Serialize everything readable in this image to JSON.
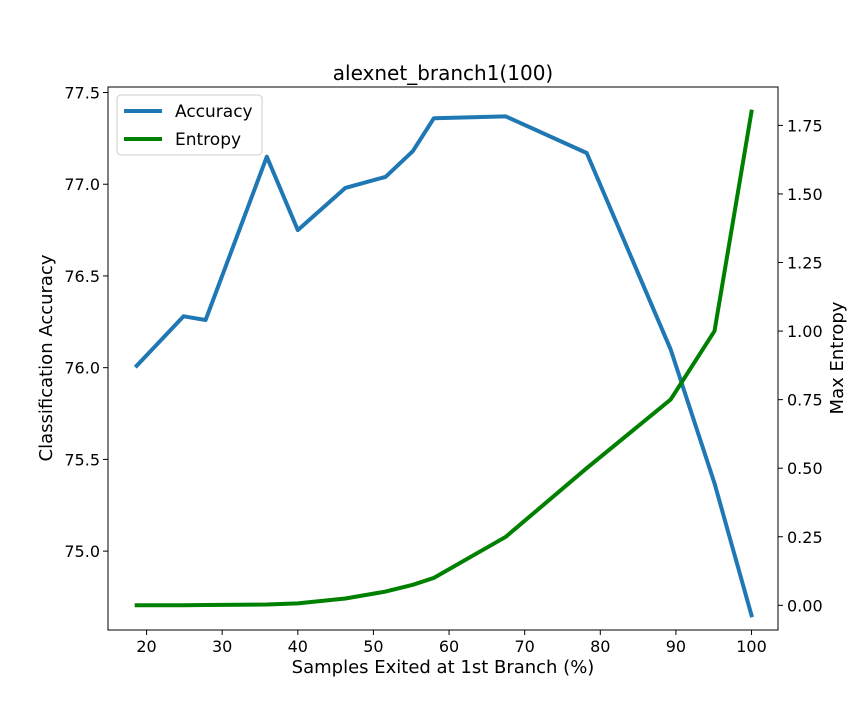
{
  "chart_data": {
    "type": "line",
    "title": "alexnet_branch1(100)",
    "xlabel": "Samples Exited at 1st Branch (%)",
    "ylabel_left": "Classification Accuracy",
    "ylabel_right": "Max Entropy",
    "xlim": [
      14.9,
      103.5
    ],
    "ylim_left": [
      74.57,
      77.53
    ],
    "ylim_right": [
      -0.09,
      1.89
    ],
    "xticks": [
      20,
      30,
      40,
      50,
      60,
      70,
      80,
      90,
      100
    ],
    "yticks_left": [
      75.0,
      75.5,
      76.0,
      76.5,
      77.0,
      77.5
    ],
    "yticks_left_labels": [
      "75.0",
      "75.5",
      "76.0",
      "76.5",
      "77.0",
      "77.5"
    ],
    "yticks_right": [
      0.0,
      0.25,
      0.5,
      0.75,
      1.0,
      1.25,
      1.5,
      1.75
    ],
    "yticks_right_labels": [
      "0.00",
      "0.25",
      "0.50",
      "0.75",
      "1.00",
      "1.25",
      "1.50",
      "1.75"
    ],
    "legend_position": "top-left",
    "grid": false,
    "series": [
      {
        "name": "Accuracy",
        "axis": "left",
        "color": "#1f77b4",
        "x": [
          18.7,
          24.9,
          27.8,
          35.9,
          40.0,
          46.3,
          51.6,
          55.2,
          58.0,
          67.5,
          78.2,
          89.3,
          95.1,
          100.0
        ],
        "y": [
          76.01,
          76.28,
          76.26,
          77.15,
          76.75,
          76.98,
          77.04,
          77.18,
          77.36,
          77.37,
          77.17,
          76.1,
          75.37,
          74.65
        ]
      },
      {
        "name": "Entropy",
        "axis": "right",
        "color": "#008000",
        "x": [
          18.7,
          24.9,
          27.8,
          35.9,
          40.0,
          46.3,
          51.6,
          55.2,
          58.0,
          67.5,
          78.2,
          89.3,
          95.1,
          100.0
        ],
        "y": [
          0.0,
          0.0,
          0.001,
          0.003,
          0.007,
          0.025,
          0.05,
          0.075,
          0.1,
          0.25,
          0.5,
          0.75,
          1.0,
          1.8
        ]
      }
    ]
  }
}
